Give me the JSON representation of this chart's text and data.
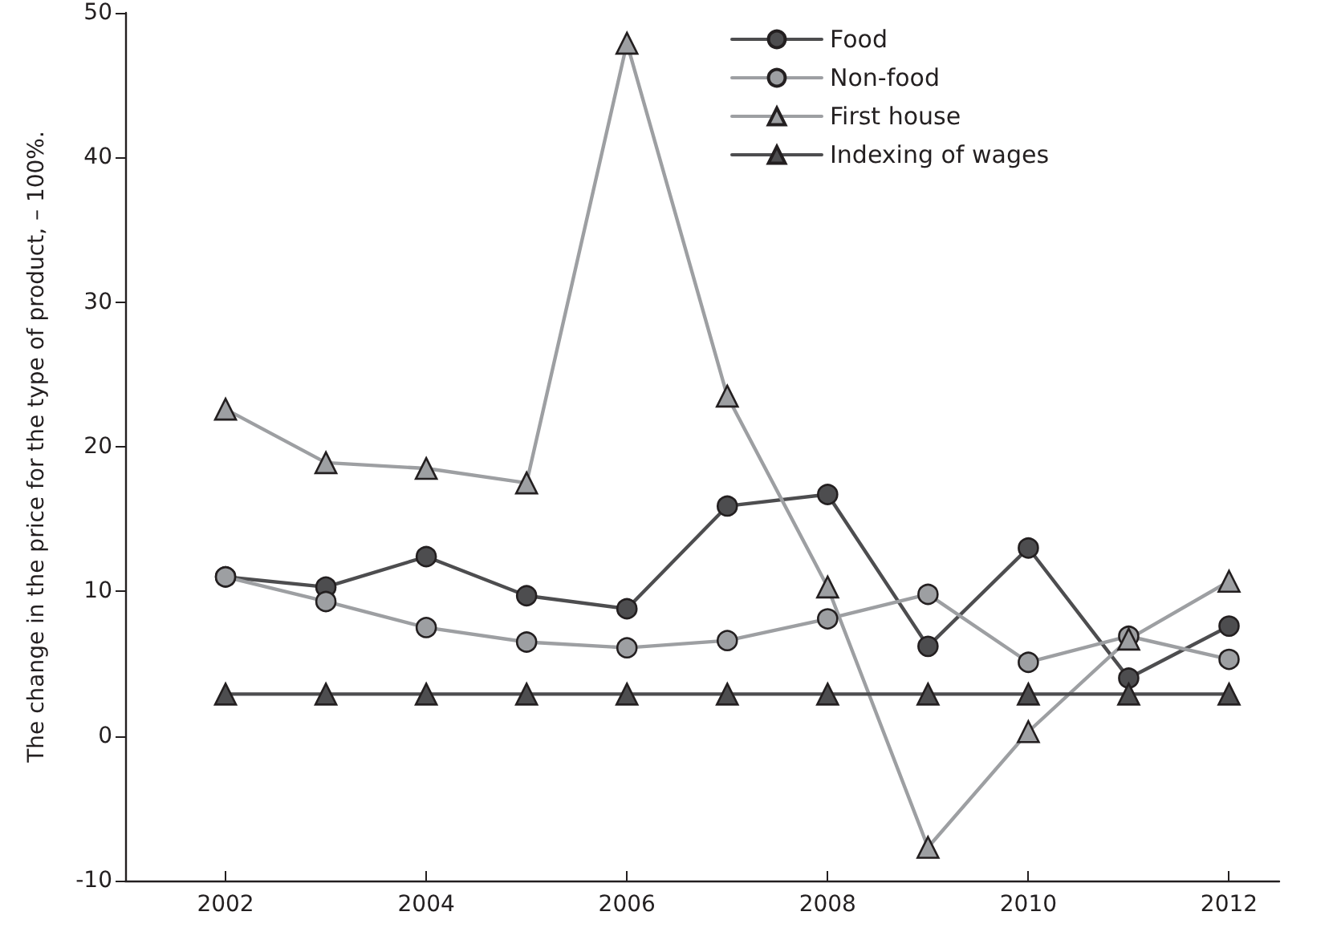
{
  "chart_data": {
    "type": "line",
    "ylabel": "The change in the price for the type of product, – 100%.",
    "x": [
      2002,
      2003,
      2004,
      2005,
      2006,
      2007,
      2008,
      2009,
      2010,
      2011,
      2012
    ],
    "xlim": [
      2001,
      2012.5
    ],
    "xticks": [
      2002,
      2004,
      2006,
      2008,
      2010,
      2012
    ],
    "ylim": [
      -10,
      50
    ],
    "yticks": [
      -10,
      0,
      10,
      20,
      30,
      40,
      50
    ],
    "grid": false,
    "legend": "top",
    "line_style": "solid",
    "series": [
      {
        "name": "Food",
        "color": "#4d4d4f",
        "marker": "circle",
        "values": [
          11.0,
          10.3,
          12.4,
          9.7,
          8.8,
          15.9,
          16.7,
          6.2,
          13.0,
          4.0,
          7.6
        ]
      },
      {
        "name": "Non-food",
        "color": "#9d9fa2",
        "marker": "circle",
        "values": [
          11.0,
          9.3,
          7.5,
          6.5,
          6.1,
          6.6,
          8.1,
          9.8,
          5.1,
          6.9,
          5.3
        ]
      },
      {
        "name": "First house",
        "color": "#9d9fa2",
        "marker": "triangle",
        "values": [
          22.6,
          18.9,
          18.5,
          17.5,
          47.9,
          23.5,
          10.3,
          -7.7,
          0.3,
          6.7,
          10.7
        ]
      },
      {
        "name": "Indexing of wages",
        "color": "#4d4d4f",
        "marker": "triangle",
        "values": [
          2.9,
          2.9,
          2.9,
          2.9,
          2.9,
          2.9,
          2.9,
          2.9,
          2.9,
          2.9,
          2.9
        ]
      }
    ]
  }
}
